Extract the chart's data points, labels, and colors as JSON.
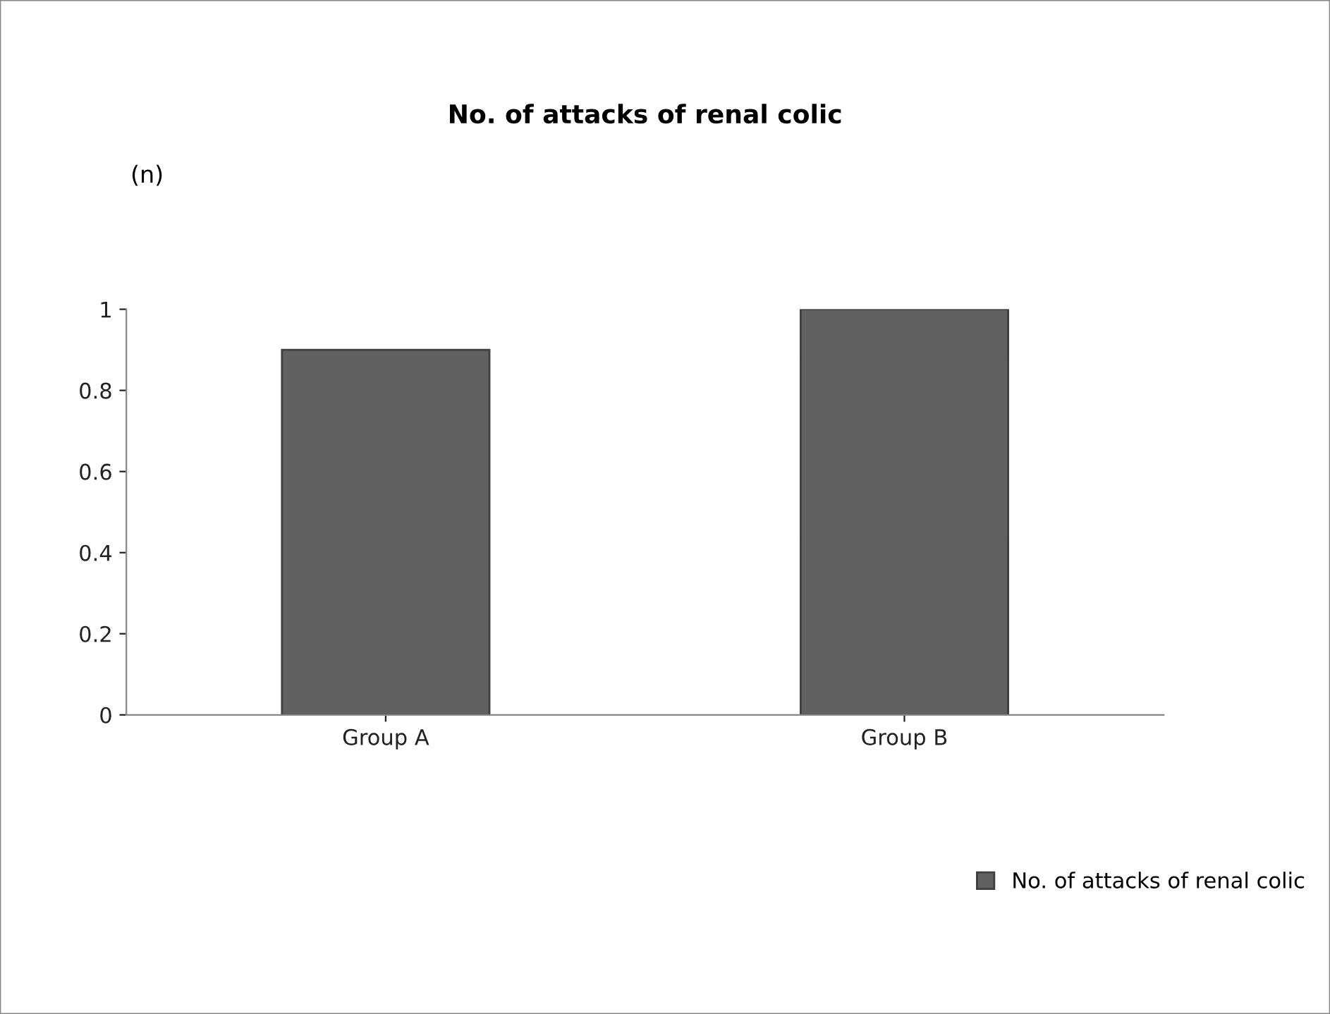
{
  "chart_data": {
    "type": "bar",
    "title": "No. of attacks of renal colic",
    "ylabel": "(n)",
    "categories": [
      "Group A",
      "Group B"
    ],
    "series": [
      {
        "name": "No. of attacks of renal colic",
        "color": "#616161",
        "values": [
          0.9,
          1.0
        ]
      }
    ],
    "ylim": [
      0,
      1
    ],
    "yticks": [
      0,
      0.2,
      0.4,
      0.6,
      0.8,
      1
    ],
    "grid": false,
    "legend": "right"
  }
}
